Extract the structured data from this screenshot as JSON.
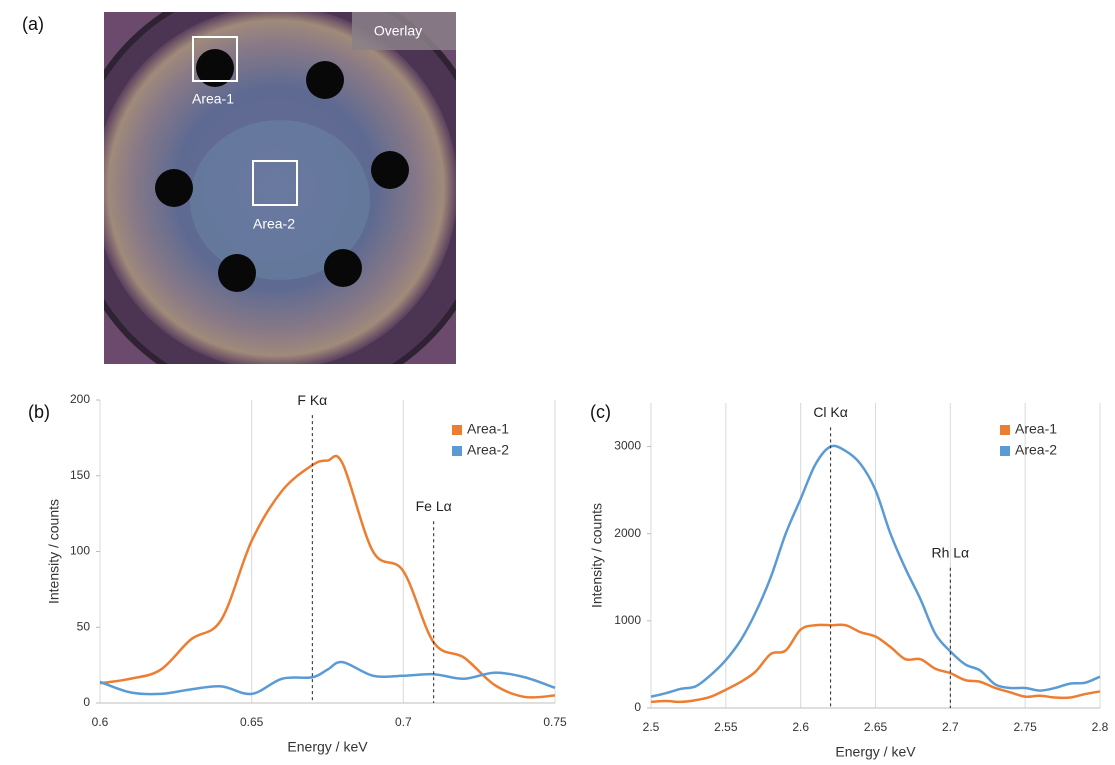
{
  "panel_a": {
    "label": "(a)",
    "badge": "Overlay",
    "areas": [
      "Area-1",
      "Area-2"
    ]
  },
  "chart_data": [
    {
      "type": "line",
      "panel_label": "(b)",
      "x_label": "Energy / keV",
      "y_label": "Intensity / counts",
      "x": [
        0.6,
        0.61,
        0.62,
        0.63,
        0.64,
        0.65,
        0.66,
        0.67,
        0.675,
        0.68,
        0.69,
        0.7,
        0.71,
        0.72,
        0.73,
        0.74,
        0.75
      ],
      "series": [
        {
          "name": "Area-1",
          "color": "#ed7d31",
          "values": [
            13,
            16,
            22,
            42,
            55,
            107,
            140,
            157,
            160,
            158,
            100,
            87,
            40,
            30,
            12,
            4,
            5
          ]
        },
        {
          "name": "Area-2",
          "color": "#5b9bd5",
          "values": [
            14,
            7,
            6,
            9,
            11,
            6,
            16,
            17,
            22,
            27,
            18,
            18,
            19,
            16,
            20,
            17,
            10
          ]
        }
      ],
      "xlim": [
        0.6,
        0.75
      ],
      "xticks": [
        0.6,
        0.65,
        0.7,
        0.75
      ],
      "ylim": [
        0,
        200
      ],
      "yticks": [
        0,
        50,
        100,
        150,
        200
      ],
      "grid": "x",
      "legend": "upper right",
      "annotations": [
        {
          "text": "F Kα",
          "x": 0.67,
          "y": 190
        },
        {
          "text": "Fe Lα",
          "x": 0.71,
          "y": 120
        }
      ]
    },
    {
      "type": "line",
      "panel_label": "(c)",
      "x_label": "Energy / keV",
      "y_label": "Intensity / counts",
      "x": [
        2.5,
        2.51,
        2.52,
        2.53,
        2.54,
        2.55,
        2.56,
        2.57,
        2.58,
        2.59,
        2.6,
        2.61,
        2.62,
        2.63,
        2.64,
        2.65,
        2.66,
        2.67,
        2.68,
        2.69,
        2.7,
        2.71,
        2.72,
        2.73,
        2.74,
        2.75,
        2.76,
        2.77,
        2.78,
        2.79,
        2.8
      ],
      "series": [
        {
          "name": "Area-1",
          "color": "#ed7d31",
          "values": [
            70,
            80,
            70,
            90,
            130,
            210,
            300,
            420,
            620,
            660,
            900,
            950,
            950,
            950,
            870,
            820,
            700,
            560,
            560,
            450,
            400,
            320,
            300,
            230,
            180,
            130,
            140,
            120,
            120,
            160,
            190
          ]
        },
        {
          "name": "Area-2",
          "color": "#5b9bd5",
          "values": [
            130,
            170,
            220,
            250,
            380,
            550,
            780,
            1100,
            1500,
            2000,
            2400,
            2800,
            3000,
            2950,
            2800,
            2500,
            2000,
            1600,
            1250,
            850,
            650,
            500,
            430,
            270,
            230,
            230,
            200,
            230,
            280,
            290,
            360
          ]
        }
      ],
      "xlim": [
        2.5,
        2.8
      ],
      "xticks": [
        2.5,
        2.55,
        2.6,
        2.65,
        2.7,
        2.75,
        2.8
      ],
      "ylim": [
        0,
        3500
      ],
      "yticks": [
        0,
        1000,
        2000,
        3000
      ],
      "grid": "x",
      "legend": "upper right",
      "annotations": [
        {
          "text": "Cl Kα",
          "x": 2.62,
          "y": 3220
        },
        {
          "text": "Rh Lα",
          "x": 2.7,
          "y": 1610
        }
      ]
    }
  ]
}
